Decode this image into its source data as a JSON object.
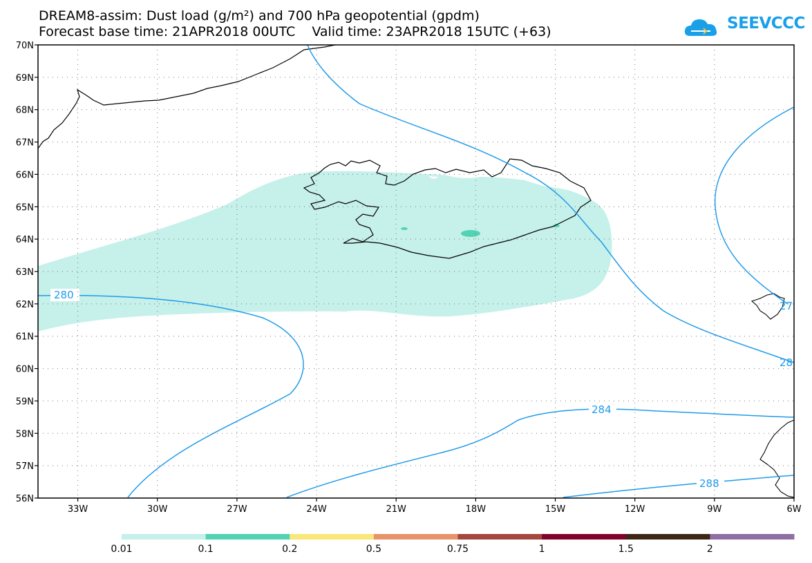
{
  "title": {
    "line1": "DREAM8-assim: Dust load (g/m²) and 700 hPa geopotential (gpdm)",
    "line2": "Forecast base time: 21APR2018 00UTC    Valid time: 23APR2018 15UTC (+63)"
  },
  "logo": {
    "text": "SEEVCCC",
    "icon": "cloud-icon",
    "color": "#1aa0e8"
  },
  "map": {
    "lat_labels": [
      "70N",
      "69N",
      "68N",
      "67N",
      "66N",
      "65N",
      "64N",
      "63N",
      "62N",
      "61N",
      "60N",
      "59N",
      "58N",
      "57N",
      "56N"
    ],
    "lon_labels": [
      "33W",
      "30W",
      "27W",
      "24W",
      "21W",
      "18W",
      "15W",
      "12W",
      "9W",
      "6W"
    ],
    "lon_range": [
      -34.5,
      -6
    ],
    "lat_range": [
      56,
      70
    ],
    "grid": "dotted",
    "dust_fill_color": "#c6f0ea",
    "dust_core_color": "#52d3b3",
    "contour_color": "#1e9be9",
    "coast_color": "#000000",
    "contour_labels": [
      "280",
      "284",
      "288",
      "27",
      "28"
    ]
  },
  "colorbar": {
    "colors": [
      "#c6f0ea",
      "#52d3b3",
      "#f9e77a",
      "#e8936a",
      "#a3473f",
      "#80032c",
      "#3e2614",
      "#8f6ea3"
    ],
    "labels": [
      "0.01",
      "0.1",
      "0.2",
      "0.5",
      "0.75",
      "1",
      "1.5",
      "2"
    ]
  }
}
